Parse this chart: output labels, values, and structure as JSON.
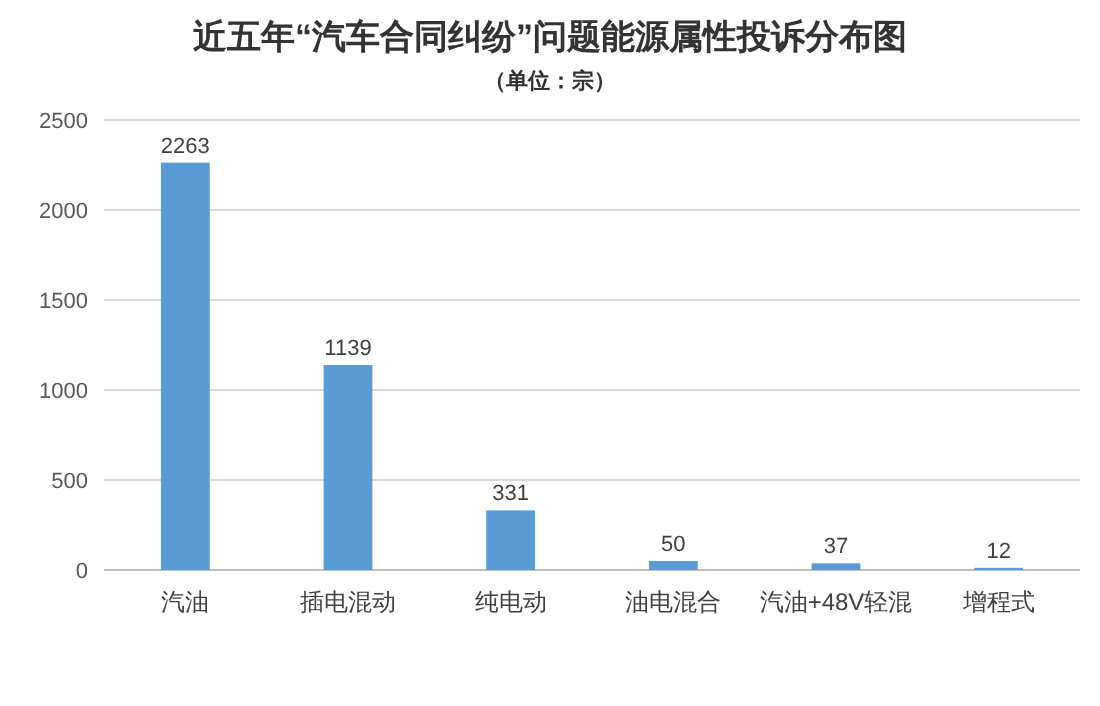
{
  "chart_data": {
    "type": "bar",
    "title": "近五年“汽车合同纠纷”问题能源属性投诉分布图",
    "subtitle": "（单位：宗）",
    "categories": [
      "汽油",
      "插电混动",
      "纯电动",
      "油电混合",
      "汽油+48V轻混",
      "增程式"
    ],
    "values": [
      2263,
      1139,
      331,
      50,
      37,
      12
    ],
    "color": "#5b9bd5",
    "ylim": [
      0,
      2500
    ],
    "yticks": [
      0,
      500,
      1000,
      1500,
      2000,
      2500
    ],
    "grid": "y",
    "data_labels": true
  }
}
